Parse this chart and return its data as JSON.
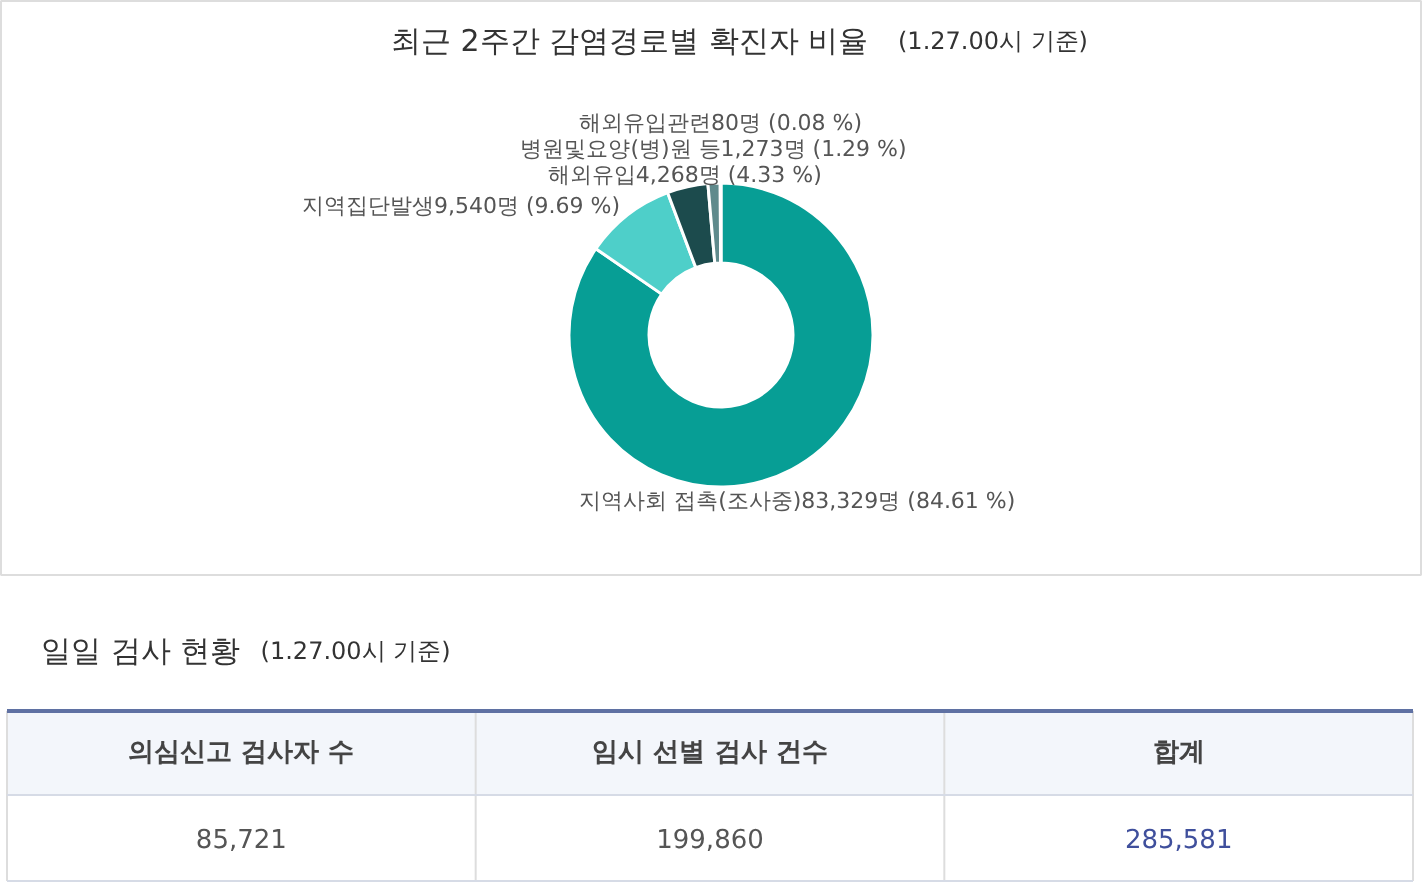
{
  "chart_data": [
    {
      "type": "donut",
      "title": "최근 2주간 감염경로별 확진자 비율",
      "subtitle": "(1.27.00시 기준)",
      "categories": [
        "지역사회 접촉(조사중)",
        "지역집단발생",
        "해외유입",
        "병원및요양(병)원 등",
        "해외유입관련"
      ],
      "values": [
        83329,
        9540,
        4268,
        1273,
        80
      ],
      "value_labels": [
        "83,329명 (84.61 %)",
        "9,540명 (9.69 %)",
        "4,268명 (4.33 %)",
        "1,273명 (1.29 %)",
        "80명 (0.08 %)"
      ],
      "colors": [
        "#079e95",
        "#4ecfc9",
        "#1c4b4d",
        "#5f8a8c",
        "#9fc6c2"
      ]
    },
    {
      "type": "other",
      "title": "일일 검사 현황",
      "subtitle": "(1.27.00시 기준)",
      "categories": [
        "의심신고 검사자 수",
        "임시 선별 검사 건수",
        "합계"
      ],
      "annotations": [
        "85,721",
        "199,860",
        "285,581"
      ]
    }
  ]
}
